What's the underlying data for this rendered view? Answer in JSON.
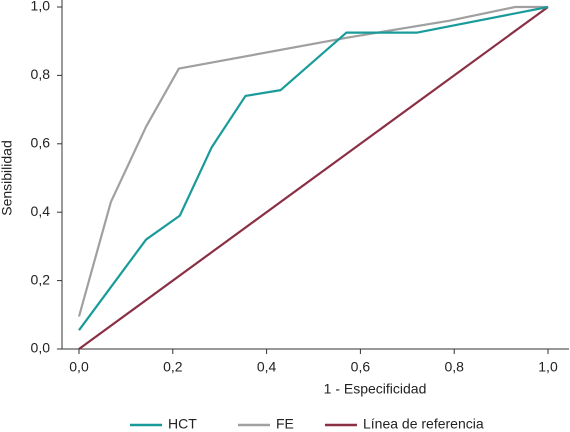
{
  "chart_data": {
    "type": "line",
    "xlabel": "1 - Especificidad",
    "ylabel": "Sensibilidad",
    "xlim": [
      0,
      1
    ],
    "ylim": [
      0,
      1
    ],
    "xticks": [
      {
        "value": 0,
        "label": "0,0"
      },
      {
        "value": 0.2,
        "label": "0,2"
      },
      {
        "value": 0.4,
        "label": "0,4"
      },
      {
        "value": 0.6,
        "label": "0,6"
      },
      {
        "value": 0.8,
        "label": "0,8"
      },
      {
        "value": 1,
        "label": "1,0"
      }
    ],
    "yticks": [
      {
        "value": 0,
        "label": "0,0"
      },
      {
        "value": 0.2,
        "label": "0,2"
      },
      {
        "value": 0.4,
        "label": "0,4"
      },
      {
        "value": 0.6,
        "label": "0,6"
      },
      {
        "value": 0.8,
        "label": "0,8"
      },
      {
        "value": 1,
        "label": "1,0"
      }
    ],
    "series": [
      {
        "name": "HCT",
        "color": "#1a9b9b",
        "x": [
          0,
          0.143,
          0.215,
          0.283,
          0.355,
          0.43,
          0.57,
          0.72,
          1
        ],
        "values": [
          0.055,
          0.32,
          0.39,
          0.59,
          0.74,
          0.757,
          0.925,
          0.925,
          1
        ]
      },
      {
        "name": "FE",
        "color": "#a0a0a0",
        "x": [
          0,
          0.068,
          0.143,
          0.213,
          0.57,
          0.79,
          0.93,
          1
        ],
        "values": [
          0.095,
          0.43,
          0.65,
          0.82,
          0.91,
          0.96,
          1,
          1
        ]
      },
      {
        "name": "Línea de referencia",
        "color": "#8b2f45",
        "x": [
          0,
          1
        ],
        "values": [
          0,
          1
        ]
      }
    ]
  }
}
